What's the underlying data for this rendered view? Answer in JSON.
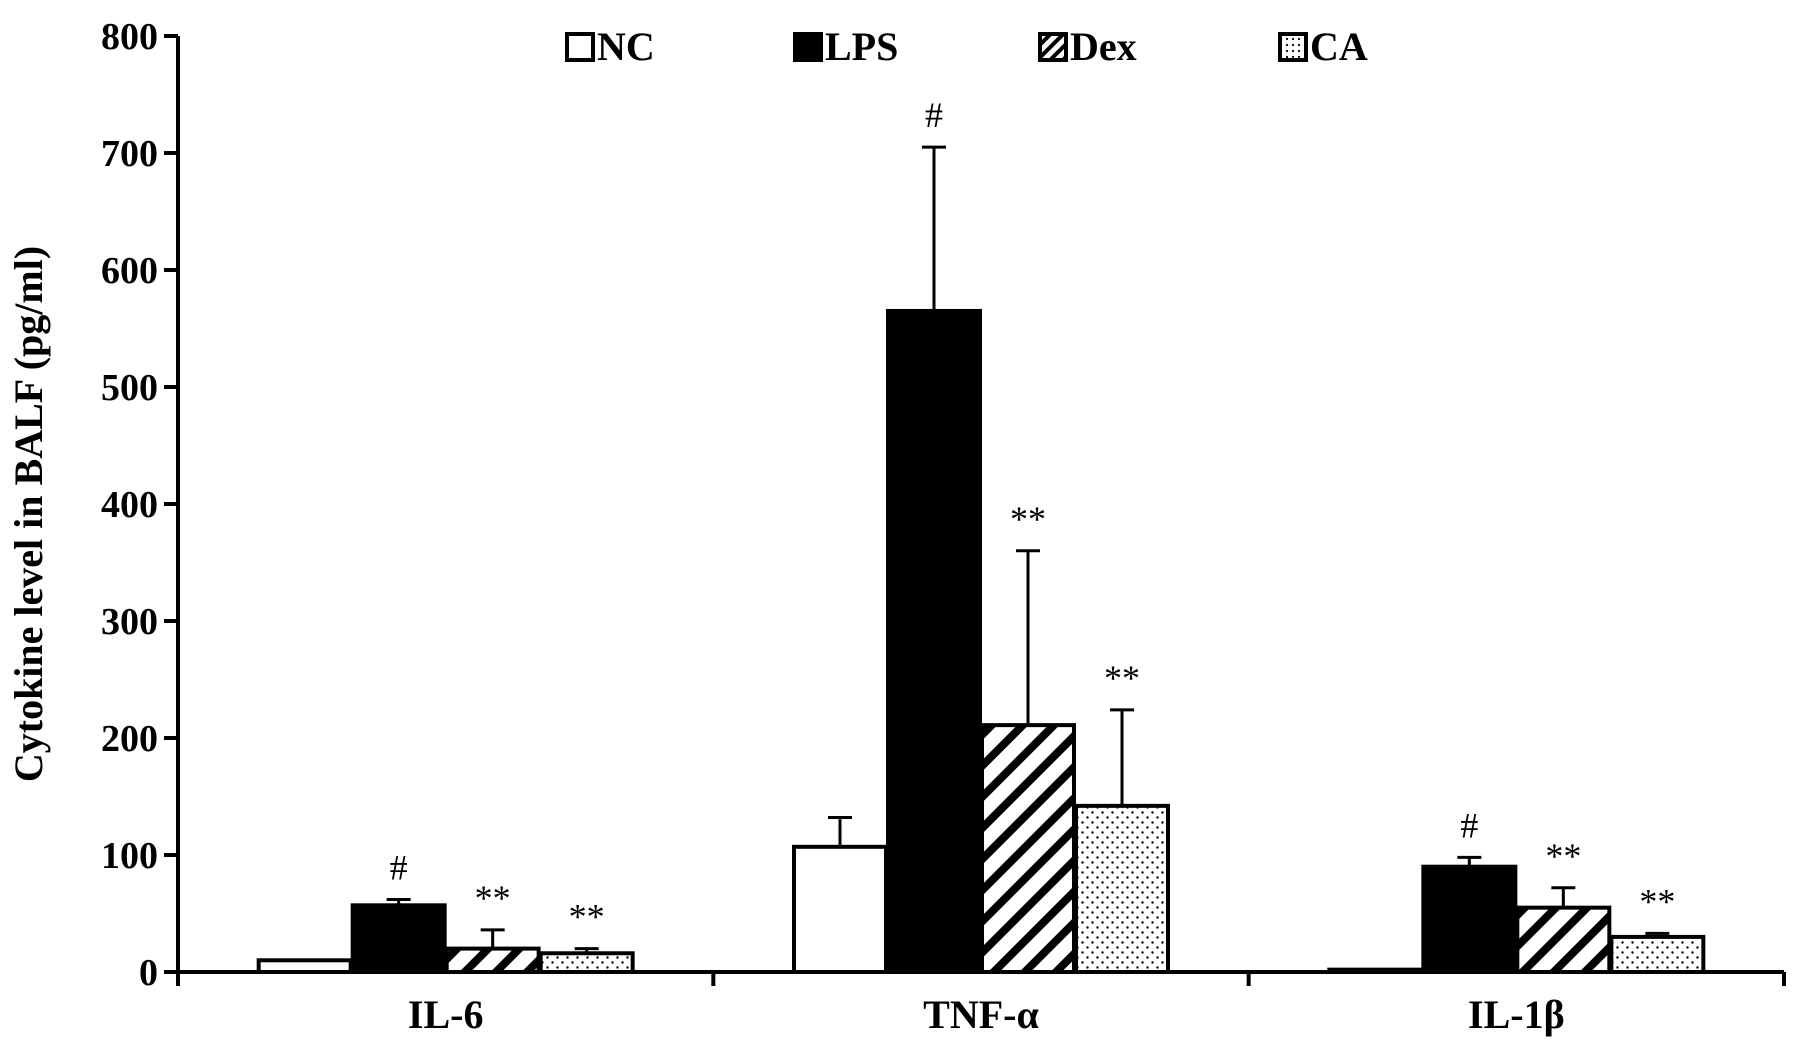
{
  "chart_data": {
    "type": "bar",
    "title": "",
    "xlabel": "",
    "ylabel": "Cytokine level in BALF (pg/ml)",
    "ylim": [
      0,
      800
    ],
    "yticks": [
      0,
      100,
      200,
      300,
      400,
      500,
      600,
      700,
      800
    ],
    "grid": false,
    "legend_position": "top",
    "categories": [
      "IL-6",
      "TNF-α",
      "IL-1β"
    ],
    "series": [
      {
        "name": "NC",
        "fill": "white",
        "values": [
          10,
          107,
          2
        ],
        "errors": [
          0,
          25,
          0
        ],
        "annotations": [
          "",
          "",
          ""
        ]
      },
      {
        "name": "LPS",
        "fill": "black",
        "values": [
          57,
          565,
          90
        ],
        "errors": [
          5,
          140,
          8
        ],
        "annotations": [
          "#",
          "#",
          "#"
        ]
      },
      {
        "name": "Dex",
        "fill": "diagonal-hatch",
        "values": [
          20,
          211,
          55
        ],
        "errors": [
          16,
          149,
          17
        ],
        "annotations": [
          "**",
          "**",
          "**"
        ]
      },
      {
        "name": "CA",
        "fill": "dots",
        "values": [
          16,
          142,
          30
        ],
        "errors": [
          4,
          82,
          3
        ],
        "annotations": [
          "**",
          "**",
          "**"
        ]
      }
    ]
  }
}
